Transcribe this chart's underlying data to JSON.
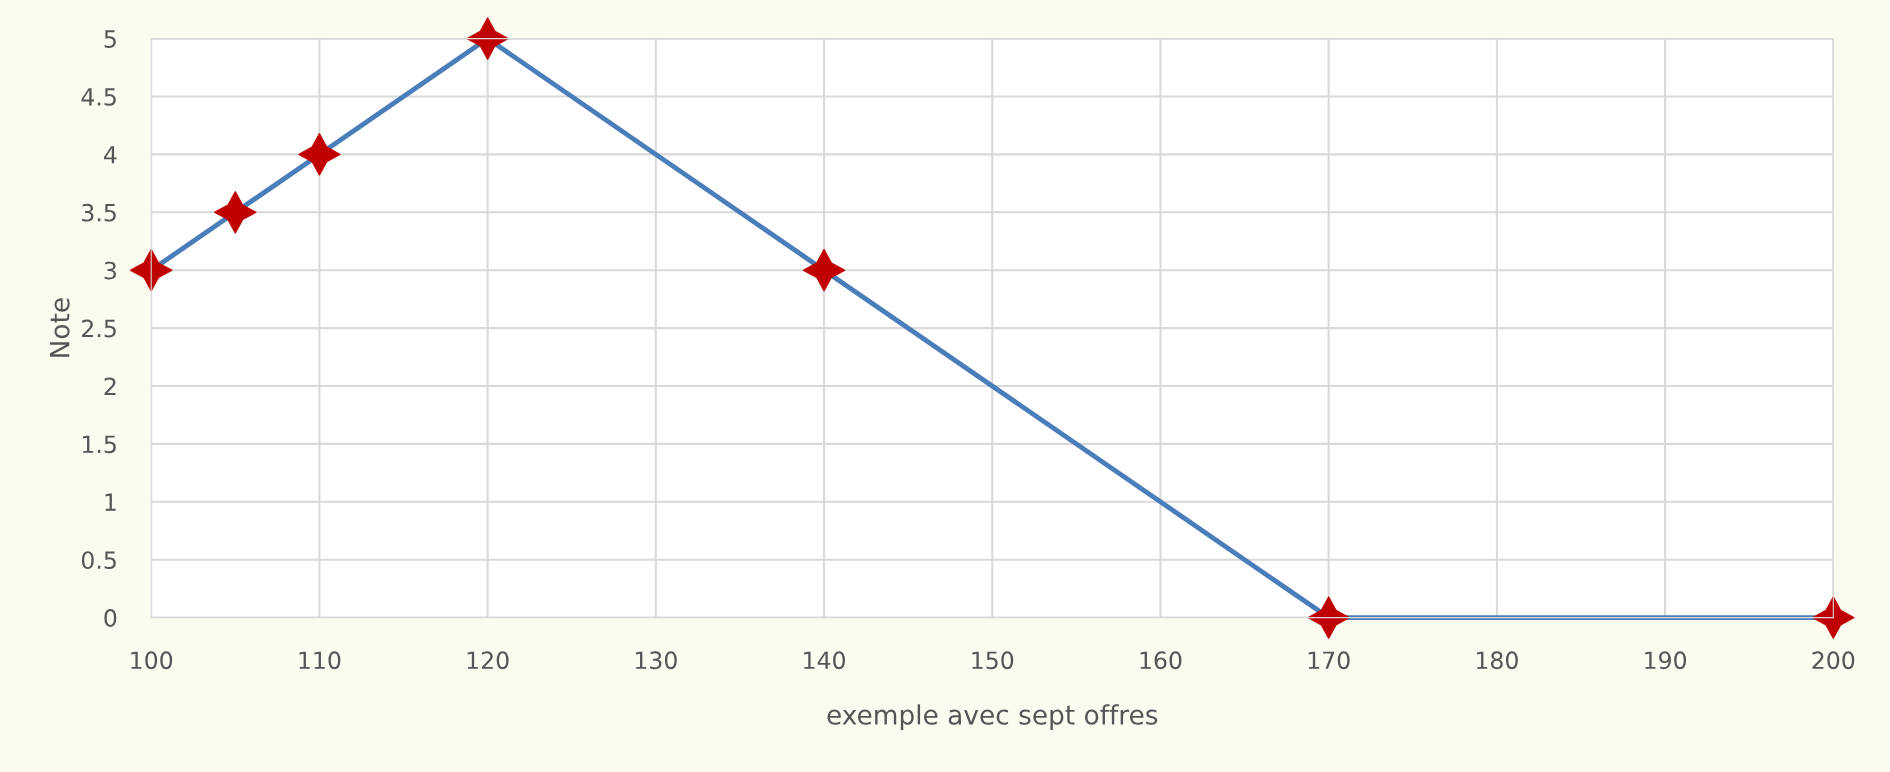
{
  "chart_data": {
    "type": "line",
    "xlabel": "exemple avec sept offres",
    "ylabel": "Note",
    "x": [
      100,
      105,
      110,
      120,
      140,
      170,
      200
    ],
    "series": [
      {
        "color": "#4a7ebb",
        "colors": [
          "#c00000",
          "#c00000",
          "#c00000",
          "#c00000",
          "#c00000",
          "#c00000",
          "#c00000"
        ],
        "values": [
          3,
          3.5,
          4,
          5,
          3,
          0,
          0
        ]
      }
    ],
    "marker": "star",
    "line_style": "solid",
    "xlim": [
      100,
      200
    ],
    "xticks": [
      100,
      110,
      120,
      130,
      140,
      150,
      160,
      170,
      180,
      190,
      200
    ],
    "ylim": [
      0,
      5
    ],
    "yticks": [
      0,
      0.5,
      1,
      1.5,
      2,
      2.5,
      3,
      3.5,
      4,
      4.5,
      5
    ],
    "grid": true
  }
}
